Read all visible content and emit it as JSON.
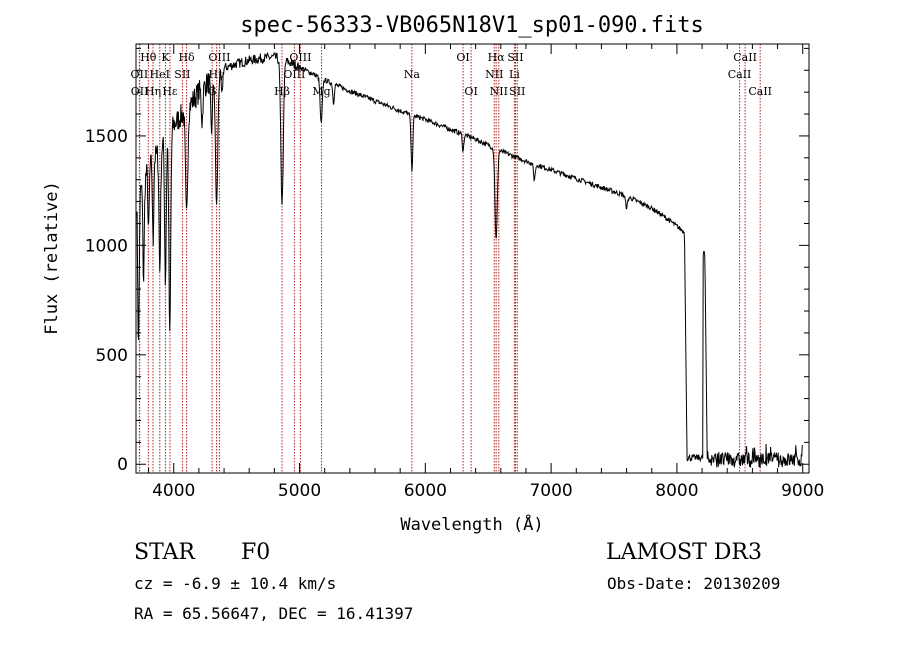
{
  "chart_data": {
    "type": "line",
    "title": "spec-56333-VB065N18V1_sp01-090.fits",
    "xlabel": "Wavelength (Å)",
    "ylabel": "Flux (relative)",
    "xlim": [
      3700,
      9050
    ],
    "ylim": [
      -40,
      1920
    ],
    "xticks": [
      4000,
      5000,
      6000,
      7000,
      8000,
      9000
    ],
    "yticks": [
      0,
      500,
      1000,
      1500
    ],
    "continuum": [
      [
        3700,
        1200
      ],
      [
        3800,
        1350
      ],
      [
        3900,
        1450
      ],
      [
        4000,
        1550
      ],
      [
        4100,
        1620
      ],
      [
        4200,
        1700
      ],
      [
        4300,
        1760
      ],
      [
        4400,
        1810
      ],
      [
        4500,
        1830
      ],
      [
        4600,
        1845
      ],
      [
        4700,
        1855
      ],
      [
        4800,
        1860
      ],
      [
        4900,
        1840
      ],
      [
        5000,
        1815
      ],
      [
        5100,
        1785
      ],
      [
        5200,
        1755
      ],
      [
        5400,
        1705
      ],
      [
        5600,
        1660
      ],
      [
        5800,
        1615
      ],
      [
        6000,
        1575
      ],
      [
        6200,
        1530
      ],
      [
        6400,
        1485
      ],
      [
        6600,
        1430
      ],
      [
        6800,
        1385
      ],
      [
        7000,
        1345
      ],
      [
        7200,
        1305
      ],
      [
        7400,
        1265
      ],
      [
        7600,
        1225
      ],
      [
        7800,
        1170
      ],
      [
        7950,
        1110
      ],
      [
        8060,
        1060
      ]
    ],
    "absorption_features": [
      {
        "w": 3720,
        "depth": 700,
        "width": 8
      },
      {
        "w": 3760,
        "depth": 450,
        "width": 8
      },
      {
        "w": 3800,
        "depth": 300,
        "width": 7
      },
      {
        "w": 3836,
        "depth": 380,
        "width": 7
      },
      {
        "w": 3889,
        "depth": 550,
        "width": 9
      },
      {
        "w": 3934,
        "depth": 650,
        "width": 9
      },
      {
        "w": 3969,
        "depth": 950,
        "width": 10
      },
      {
        "w": 4102,
        "depth": 500,
        "width": 12
      },
      {
        "w": 4226,
        "depth": 150,
        "width": 8
      },
      {
        "w": 4300,
        "depth": 250,
        "width": 10
      },
      {
        "w": 4341,
        "depth": 600,
        "width": 13
      },
      {
        "w": 4383,
        "depth": 120,
        "width": 8
      },
      {
        "w": 4861,
        "depth": 650,
        "width": 14
      },
      {
        "w": 5172,
        "depth": 210,
        "width": 12
      },
      {
        "w": 5270,
        "depth": 90,
        "width": 8
      },
      {
        "w": 5893,
        "depth": 250,
        "width": 10
      },
      {
        "w": 6300,
        "depth": 80,
        "width": 8
      },
      {
        "w": 6563,
        "depth": 420,
        "width": 13
      },
      {
        "w": 6867,
        "depth": 70,
        "width": 10
      },
      {
        "w": 7600,
        "depth": 50,
        "width": 12
      }
    ],
    "gaps": [
      {
        "from": 8080,
        "to": 8205,
        "level": 30
      },
      {
        "from": 8240,
        "to": 9000,
        "level": 20
      }
    ],
    "lines": [
      {
        "label": "Hθ",
        "w": 3798,
        "row": 0
      },
      {
        "label": "OII",
        "w": 3727,
        "row": 1
      },
      {
        "label": "OII",
        "w": 3729,
        "row": 2
      },
      {
        "label": "HeI",
        "w": 3889,
        "row": 1
      },
      {
        "label": "Hη",
        "w": 3835,
        "row": 2
      },
      {
        "label": "K",
        "w": 3934,
        "row": 0
      },
      {
        "label": "SII",
        "w": 4069,
        "row": 1
      },
      {
        "label": "Hε",
        "w": 3970,
        "row": 2
      },
      {
        "label": "Hδ",
        "w": 4102,
        "row": 0
      },
      {
        "label": "OIII",
        "w": 4363,
        "row": 0
      },
      {
        "label": "Hγ",
        "w": 4341,
        "row": 1
      },
      {
        "label": "G",
        "w": 4305,
        "row": 2
      },
      {
        "label": "OIII",
        "w": 5007,
        "row": 0
      },
      {
        "label": "OIII",
        "w": 4959,
        "row": 1
      },
      {
        "label": "Hβ",
        "w": 4861,
        "row": 2
      },
      {
        "label": "Mg",
        "w": 5175,
        "row": 2
      },
      {
        "label": "Na",
        "w": 5893,
        "row": 1
      },
      {
        "label": "OI",
        "w": 6300,
        "row": 0
      },
      {
        "label": "OI",
        "w": 6364,
        "row": 2
      },
      {
        "label": "Hα",
        "w": 6563,
        "row": 0
      },
      {
        "label": "NII",
        "w": 6548,
        "row": 1
      },
      {
        "label": "NII",
        "w": 6584,
        "row": 2
      },
      {
        "label": "SII",
        "w": 6717,
        "row": 0
      },
      {
        "label": "Li",
        "w": 6708,
        "row": 1
      },
      {
        "label": "SII",
        "w": 6731,
        "row": 2
      },
      {
        "label": "CaII",
        "w": 8542,
        "row": 0
      },
      {
        "label": "CaII",
        "w": 8498,
        "row": 1
      },
      {
        "label": "CaII",
        "w": 8662,
        "row": 2
      }
    ]
  },
  "info": {
    "class_label": "STAR",
    "subclass": "F0",
    "survey": "LAMOST DR3",
    "cz": "cz = -6.9 ± 10.4 km/s",
    "obs_date": "Obs-Date: 20130209",
    "coords": "RA =  65.56647, DEC =  16.41397"
  },
  "colors": {
    "line_marker": "#b22222",
    "spectrum": "#000000"
  }
}
